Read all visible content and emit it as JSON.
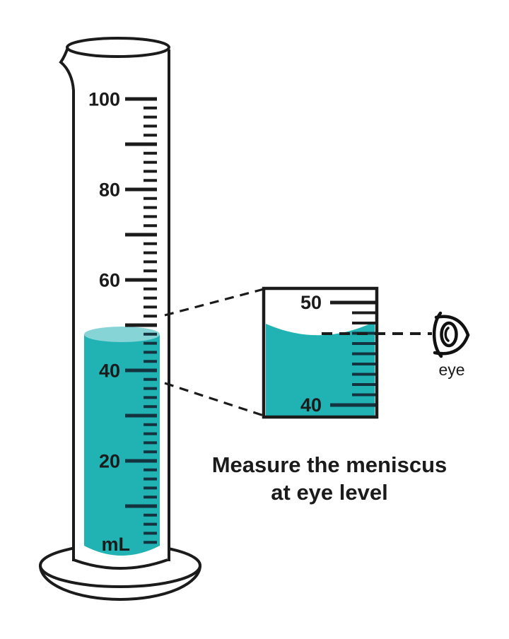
{
  "colors": {
    "liquid": "#21b2b4",
    "liquid_light": "#87d4d6",
    "liquid_ink": "#13333f",
    "ink": "#1b1b1b"
  },
  "cylinder": {
    "scale_labels": [
      "100",
      "80",
      "60",
      "40",
      "20"
    ],
    "unit_label": "mL"
  },
  "inset": {
    "top_label": "50",
    "bottom_label": "40"
  },
  "eye": {
    "label": "eye"
  },
  "caption": {
    "line1": "Measure the meniscus",
    "line2": "at eye level"
  }
}
